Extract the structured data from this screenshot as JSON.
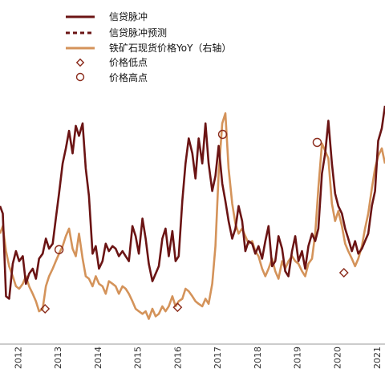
{
  "chart_data": {
    "type": "line",
    "title": "",
    "xlabel": "",
    "ylabel": "",
    "x_ticks": [
      "2012",
      "2013",
      "2014",
      "2015",
      "2016",
      "2017",
      "2018",
      "2019",
      "2020",
      "2021"
    ],
    "x_range": [
      2011.55,
      2021.2
    ],
    "y_range": [
      -2.4,
      2.4
    ],
    "grid": false,
    "legend": {
      "position": "top-center",
      "entries": [
        {
          "label": "信贷脉冲",
          "style": "solid",
          "color": "#6b1414"
        },
        {
          "label": "信贷脉冲预测",
          "style": "dashed",
          "color": "#6b1414"
        },
        {
          "label": "铁矿石现货价格YoY（右轴）",
          "style": "solid",
          "color": "#d4935a"
        },
        {
          "label": "价格低点",
          "style": "diamond",
          "color": "#8a2a1a"
        },
        {
          "label": "价格高点",
          "style": "circle",
          "color": "#8a2a1a"
        }
      ]
    },
    "series": [
      {
        "name": "信贷脉冲",
        "color": "#6b1414",
        "x": [
          2011.55,
          2011.62,
          2011.7,
          2011.78,
          2011.87,
          2011.95,
          2012.03,
          2012.12,
          2012.2,
          2012.28,
          2012.37,
          2012.45,
          2012.53,
          2012.62,
          2012.7,
          2012.78,
          2012.87,
          2012.95,
          2013.03,
          2013.12,
          2013.2,
          2013.28,
          2013.37,
          2013.45,
          2013.53,
          2013.62,
          2013.7,
          2013.78,
          2013.87,
          2013.95,
          2014.03,
          2014.12,
          2014.2,
          2014.28,
          2014.37,
          2014.45,
          2014.53,
          2014.62,
          2014.7,
          2014.78,
          2014.87,
          2014.95,
          2015.03,
          2015.12,
          2015.2,
          2015.28,
          2015.37,
          2015.45,
          2015.53,
          2015.62,
          2015.7,
          2015.78,
          2015.87,
          2015.95,
          2016.03,
          2016.12,
          2016.2,
          2016.28,
          2016.37,
          2016.45,
          2016.53,
          2016.62,
          2016.7,
          2016.78,
          2016.87,
          2016.95,
          2017.03,
          2017.12,
          2017.2,
          2017.28,
          2017.37,
          2017.45,
          2017.53,
          2017.62,
          2017.7,
          2017.78,
          2017.87,
          2017.95,
          2018.03,
          2018.12,
          2018.2,
          2018.28,
          2018.37,
          2018.45,
          2018.53,
          2018.62,
          2018.7,
          2018.78,
          2018.87,
          2018.95,
          2019.03,
          2019.12,
          2019.2,
          2019.28,
          2019.37,
          2019.45,
          2019.53,
          2019.62,
          2019.7,
          2019.78,
          2019.87,
          2019.95,
          2020.03,
          2020.12,
          2020.2,
          2020.28,
          2020.37,
          2020.45,
          2020.53,
          2020.62,
          2020.7,
          2020.78,
          2020.87,
          2020.95,
          2021.03,
          2021.12,
          2021.2
        ],
        "values": [
          0.05,
          -0.1,
          -1.75,
          -1.8,
          -1.1,
          -0.85,
          -1.05,
          -0.95,
          -1.5,
          -1.3,
          -1.2,
          -1.4,
          -1.0,
          -0.9,
          -0.6,
          -0.8,
          -0.7,
          -0.2,
          0.3,
          0.9,
          1.2,
          1.55,
          1.1,
          1.65,
          1.45,
          1.7,
          0.8,
          0.25,
          -0.9,
          -0.75,
          -1.2,
          -1.05,
          -0.7,
          -0.85,
          -0.75,
          -0.8,
          -0.95,
          -0.85,
          -0.95,
          -1.05,
          -0.35,
          -0.55,
          -0.9,
          -0.2,
          -0.6,
          -1.1,
          -1.45,
          -1.3,
          -1.15,
          -0.6,
          -0.4,
          -0.95,
          -0.45,
          -1.05,
          -0.95,
          0.15,
          0.9,
          1.4,
          1.1,
          0.6,
          1.4,
          0.9,
          1.7,
          0.9,
          0.35,
          0.65,
          1.25,
          0.5,
          0.15,
          -0.25,
          -0.6,
          -0.4,
          0.05,
          -0.25,
          -0.85,
          -0.65,
          -0.7,
          -0.9,
          -0.75,
          -1.0,
          -0.65,
          -0.35,
          -1.15,
          -1.05,
          -0.55,
          -0.8,
          -1.25,
          -1.35,
          -0.85,
          -0.55,
          -1.05,
          -0.85,
          -1.2,
          -0.75,
          -0.5,
          -0.65,
          -0.4,
          0.7,
          1.1,
          1.75,
          0.9,
          0.3,
          0.05,
          -0.1,
          -0.4,
          -0.6,
          -0.85,
          -0.65,
          -0.9,
          -0.8,
          -0.65,
          -0.5,
          0.05,
          0.35,
          1.35,
          1.6,
          2.05
        ]
      },
      {
        "name": "信贷脉冲预测",
        "color": "#6b1414",
        "x": [],
        "values": []
      },
      {
        "name": "铁矿石现货价格YoY（右轴）",
        "color": "#d4935a",
        "x": [
          2011.55,
          2011.62,
          2011.7,
          2011.78,
          2011.87,
          2011.95,
          2012.03,
          2012.12,
          2012.2,
          2012.28,
          2012.37,
          2012.45,
          2012.53,
          2012.62,
          2012.7,
          2012.78,
          2012.87,
          2012.95,
          2013.03,
          2013.12,
          2013.2,
          2013.28,
          2013.37,
          2013.45,
          2013.53,
          2013.62,
          2013.7,
          2013.78,
          2013.87,
          2013.95,
          2014.03,
          2014.12,
          2014.2,
          2014.28,
          2014.37,
          2014.45,
          2014.53,
          2014.62,
          2014.7,
          2014.78,
          2014.87,
          2014.95,
          2015.03,
          2015.12,
          2015.2,
          2015.28,
          2015.37,
          2015.45,
          2015.53,
          2015.62,
          2015.7,
          2015.78,
          2015.87,
          2015.95,
          2016.03,
          2016.12,
          2016.2,
          2016.28,
          2016.37,
          2016.45,
          2016.53,
          2016.62,
          2016.7,
          2016.78,
          2016.87,
          2016.95,
          2017.03,
          2017.12,
          2017.2,
          2017.28,
          2017.37,
          2017.45,
          2017.53,
          2017.62,
          2017.7,
          2017.78,
          2017.87,
          2017.95,
          2018.03,
          2018.12,
          2018.2,
          2018.28,
          2018.37,
          2018.45,
          2018.53,
          2018.62,
          2018.7,
          2018.78,
          2018.87,
          2018.95,
          2019.03,
          2019.12,
          2019.2,
          2019.28,
          2019.37,
          2019.45,
          2019.53,
          2019.62,
          2019.7,
          2019.78,
          2019.87,
          2019.95,
          2020.03,
          2020.12,
          2020.2,
          2020.28,
          2020.37,
          2020.45,
          2020.53,
          2020.62,
          2020.7,
          2020.78,
          2020.87,
          2020.95,
          2021.03,
          2021.12,
          2021.2
        ],
        "values": [
          -0.5,
          -0.35,
          -0.85,
          -1.15,
          -1.35,
          -1.55,
          -1.6,
          -1.5,
          -1.35,
          -1.55,
          -1.7,
          -1.85,
          -2.05,
          -2.0,
          -1.55,
          -1.35,
          -1.2,
          -1.05,
          -0.9,
          -0.75,
          -0.55,
          -0.4,
          -0.8,
          -0.95,
          -0.5,
          -1.0,
          -1.35,
          -1.4,
          -1.55,
          -1.35,
          -1.5,
          -1.55,
          -1.7,
          -1.45,
          -1.5,
          -1.55,
          -1.7,
          -1.55,
          -1.6,
          -1.7,
          -1.85,
          -2.0,
          -2.05,
          -2.1,
          -2.05,
          -2.2,
          -2.0,
          -2.15,
          -2.1,
          -1.95,
          -2.05,
          -1.95,
          -1.75,
          -1.95,
          -1.85,
          -1.8,
          -1.6,
          -1.65,
          -1.75,
          -1.85,
          -1.9,
          -1.95,
          -1.8,
          -1.9,
          -1.5,
          -0.75,
          0.7,
          1.7,
          1.9,
          0.8,
          0.1,
          -0.3,
          -0.5,
          -0.4,
          -0.55,
          -0.7,
          -0.65,
          -0.85,
          -0.95,
          -1.2,
          -1.35,
          -1.2,
          -1.0,
          -1.25,
          -1.4,
          -1.05,
          -1.2,
          -1.05,
          -0.95,
          -1.05,
          -1.1,
          -1.25,
          -1.35,
          -1.1,
          -1.0,
          -0.5,
          0.4,
          1.3,
          1.15,
          1.0,
          0.1,
          -0.25,
          -0.05,
          -0.35,
          -0.7,
          -0.85,
          -1.0,
          -1.15,
          -1.0,
          -0.75,
          -0.4,
          -0.1,
          0.4,
          0.8,
          1.05,
          1.2,
          0.9
        ]
      }
    ],
    "markers": {
      "low": [
        {
          "x": 2012.68,
          "value": -2.0
        },
        {
          "x": 2016.0,
          "value": -1.97
        },
        {
          "x": 2020.17,
          "value": -1.28
        }
      ],
      "high": [
        {
          "x": 2013.03,
          "value": -0.82
        },
        {
          "x": 2017.13,
          "value": 1.48
        },
        {
          "x": 2019.5,
          "value": 1.32
        }
      ]
    }
  }
}
